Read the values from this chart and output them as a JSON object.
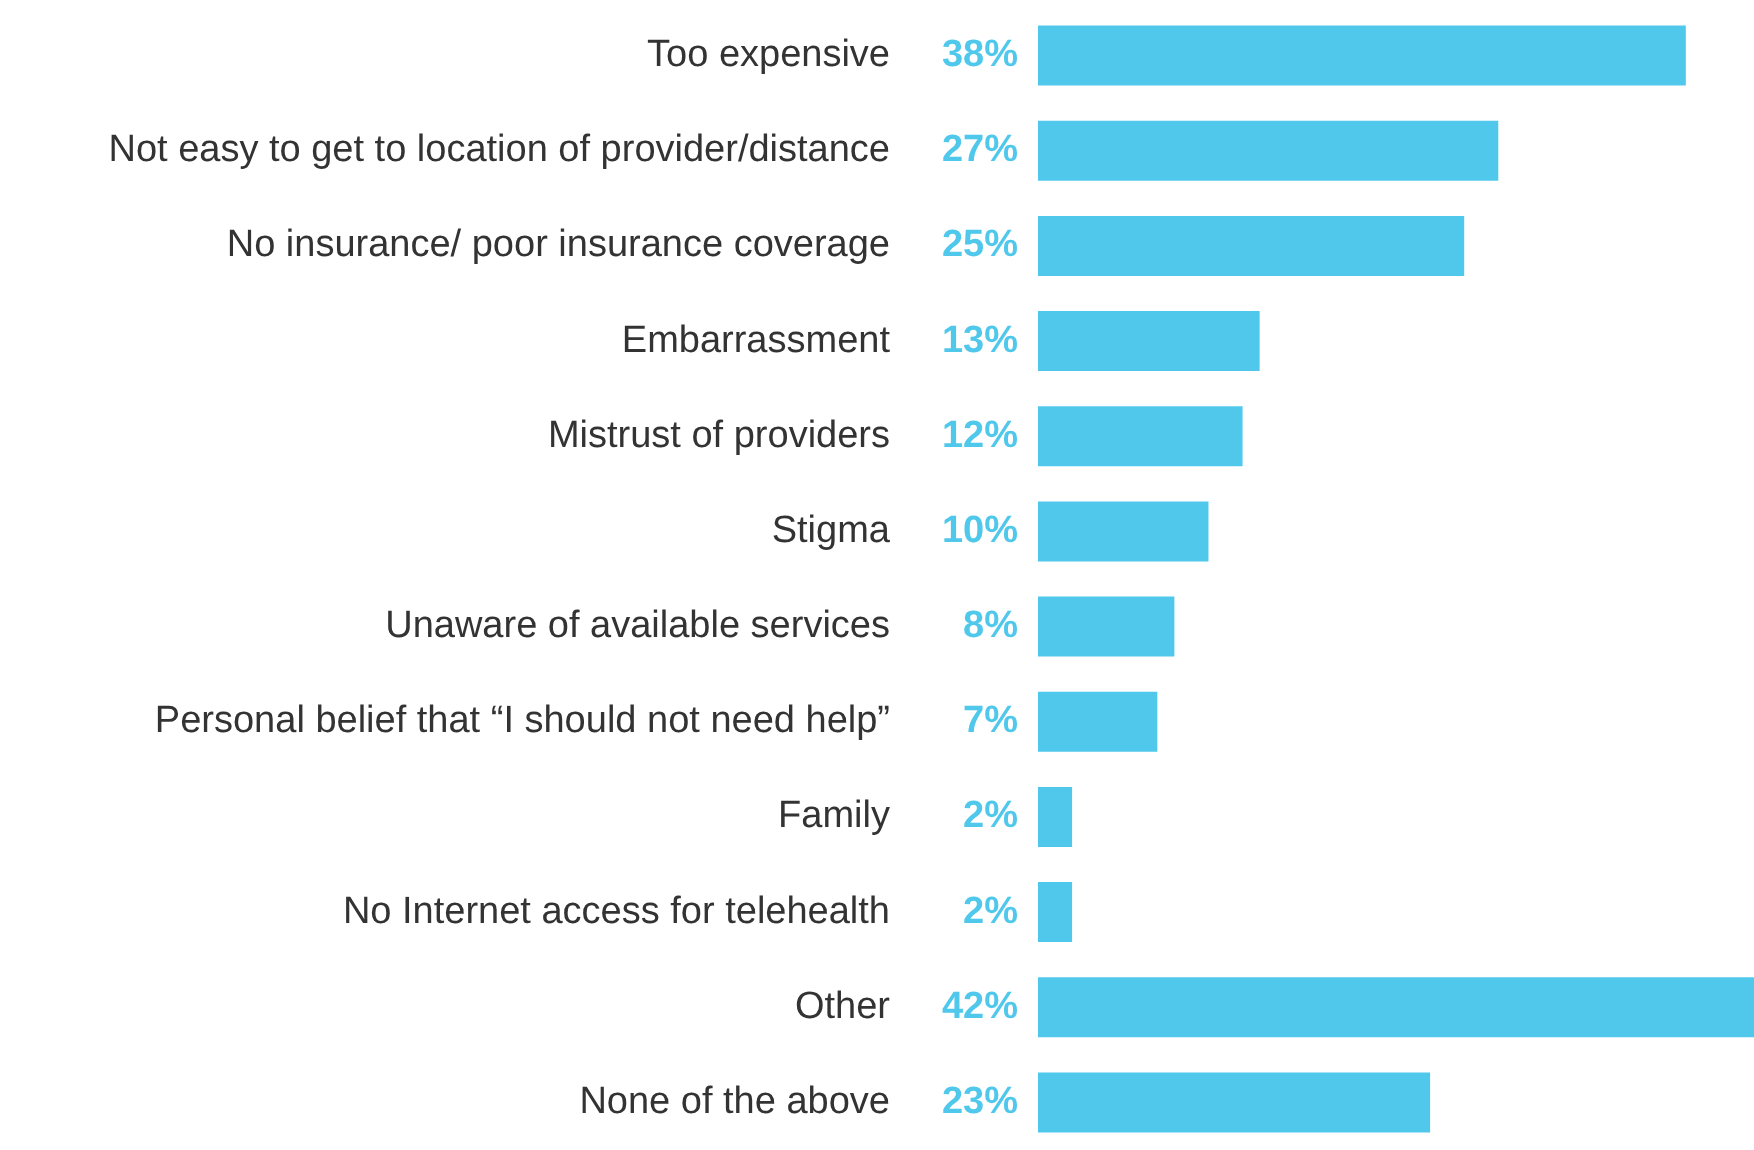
{
  "chart_data": {
    "type": "bar",
    "orientation": "horizontal",
    "categories": [
      "Too expensive",
      "Not easy to get to location of provider/distance",
      "No insurance/ poor insurance coverage",
      "Embarrassment",
      "Mistrust of providers",
      "Stigma",
      "Unaware of available services",
      "Personal belief that “I should not need help”",
      "Family",
      "No Internet access for telehealth",
      "Other",
      "None of the above"
    ],
    "values": [
      38,
      27,
      25,
      13,
      12,
      10,
      8,
      7,
      2,
      2,
      42,
      23
    ],
    "value_labels": [
      "38%",
      "27%",
      "25%",
      "13%",
      "12%",
      "10%",
      "8%",
      "7%",
      "2%",
      "2%",
      "42%",
      "23%"
    ],
    "color": "#50c8eb",
    "legend": false,
    "tick_labels": "y"
  }
}
